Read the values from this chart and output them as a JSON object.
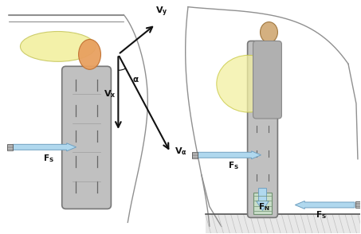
{
  "fig_width": 4.53,
  "fig_height": 2.94,
  "dpi": 100,
  "bg_color": "#ffffff",
  "gray_color": "#a0a0a0",
  "light_gray": "#c8c8c8",
  "dark_gray": "#555555",
  "yellow_color": "#f2f0a0",
  "orange_color": "#e8a060",
  "blue_arrow_color": "#b0d8ee",
  "blue_arrow_edge": "#70a0c0",
  "green_color": "#c8ddc8",
  "car_line_color": "#909090",
  "black": "#111111"
}
